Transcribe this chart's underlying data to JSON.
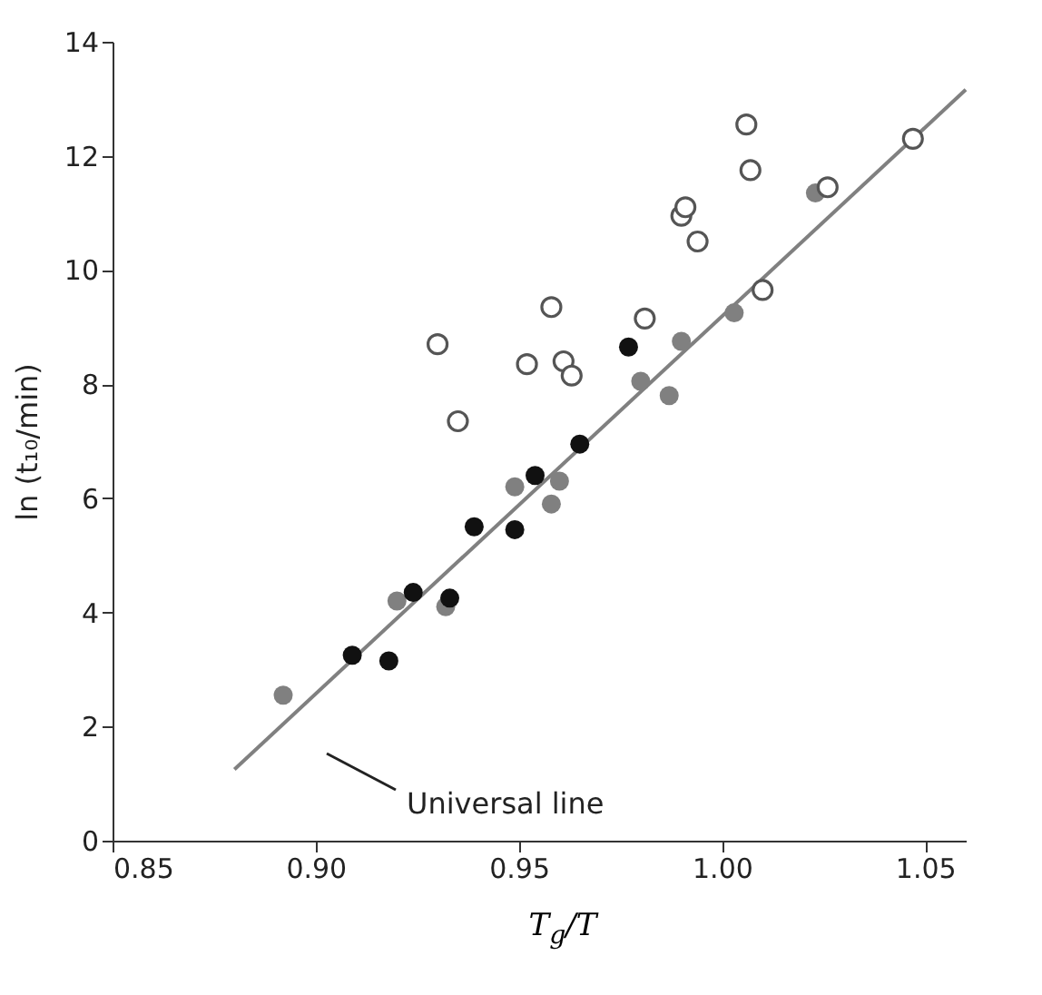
{
  "chart_data": {
    "type": "scatter",
    "xlabel": "T$_{g}$/T",
    "ylabel": "ln (t₁₀/min)",
    "xlim": [
      0.85,
      1.06
    ],
    "ylim": [
      0,
      14
    ],
    "xticks": [
      {
        "value": 0.85,
        "label": "0.85"
      },
      {
        "value": 0.9,
        "label": "0.90"
      },
      {
        "value": 0.95,
        "label": "0.95"
      },
      {
        "value": 1,
        "label": "1.00"
      },
      {
        "value": 1.05,
        "label": "1.05"
      }
    ],
    "yticks": [
      0,
      2,
      4,
      6,
      8,
      10,
      12,
      14
    ],
    "grid": false,
    "marker": "circle",
    "annotations": [
      "Universal line"
    ],
    "series": [
      {
        "type": "line",
        "color": "#808080",
        "x": [
          0.88,
          1.06
        ],
        "values": [
          1.25,
          13.16
        ],
        "marker": "none"
      },
      {
        "color": "#808080",
        "x": [
          0.892,
          0.92,
          0.932,
          0.949,
          0.958,
          0.96,
          0.98,
          0.987,
          0.99,
          1.003,
          1.023
        ],
        "values": [
          2.55,
          4.2,
          4.1,
          6.2,
          5.9,
          6.3,
          8.05,
          7.8,
          8.75,
          9.25,
          11.35
        ]
      },
      {
        "color": "#111111",
        "x": [
          0.909,
          0.918,
          0.924,
          0.933,
          0.939,
          0.949,
          0.954,
          0.965,
          0.977
        ],
        "values": [
          3.25,
          3.15,
          4.35,
          4.25,
          5.5,
          5.45,
          6.4,
          6.95,
          8.65
        ]
      },
      {
        "color": "#ffffff",
        "x": [
          0.93,
          0.935,
          0.952,
          0.958,
          0.961,
          0.963,
          0.981,
          0.99,
          0.991,
          0.994,
          1.006,
          1.007,
          1.01,
          1.026,
          1.047
        ],
        "values": [
          8.7,
          7.35,
          8.35,
          9.35,
          8.4,
          8.15,
          9.15,
          10.95,
          11.1,
          10.5,
          12.55,
          11.75,
          9.65,
          11.45,
          12.3
        ]
      }
    ]
  }
}
